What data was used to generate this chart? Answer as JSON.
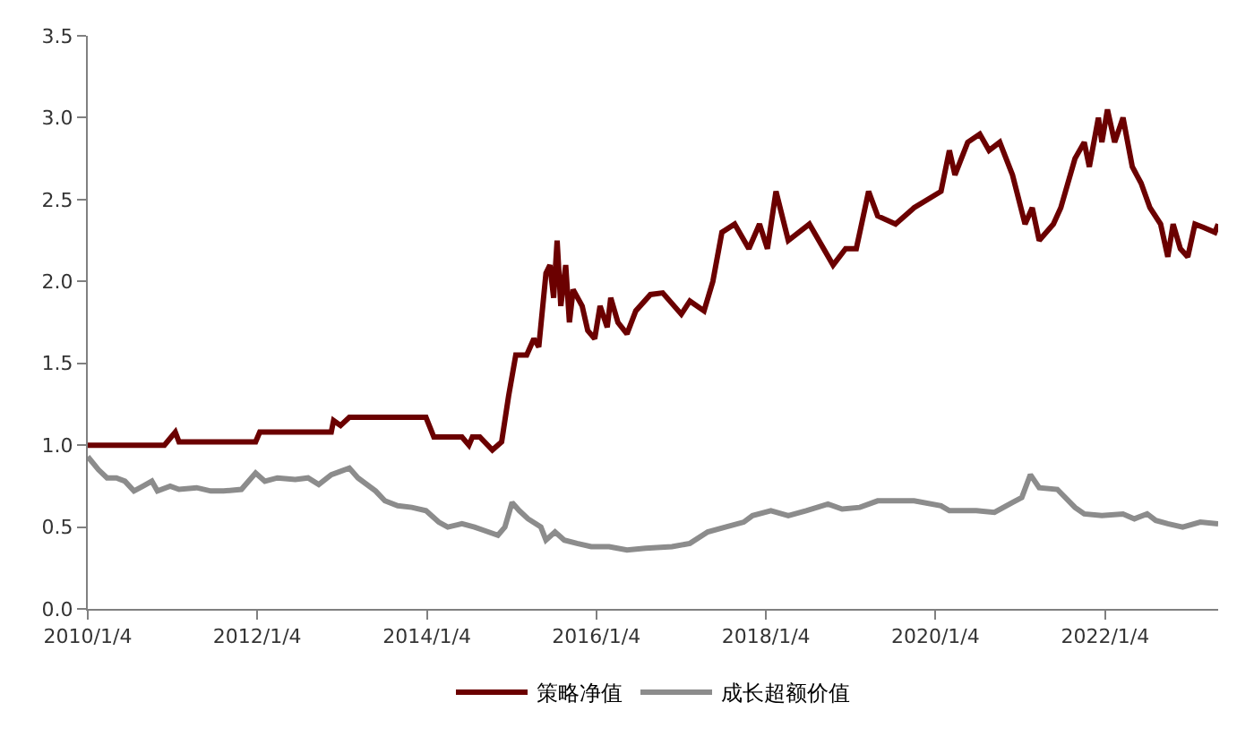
{
  "chart_data": {
    "type": "line",
    "xlim": [
      "2010-01-04",
      "2023-05-06"
    ],
    "xticks": [
      {
        "value": "2010-01-04",
        "label": "2010/1/4"
      },
      {
        "value": "2012-01-04",
        "label": "2012/1/4"
      },
      {
        "value": "2014-01-04",
        "label": "2014/1/4"
      },
      {
        "value": "2016-01-04",
        "label": "2016/1/4"
      },
      {
        "value": "2018-01-04",
        "label": "2018/1/4"
      },
      {
        "value": "2020-01-04",
        "label": "2020/1/4"
      },
      {
        "value": "2022-01-04",
        "label": "2022/1/4"
      }
    ],
    "ylim": [
      0,
      3.5
    ],
    "yticks": [
      {
        "value": 0,
        "label": "0.0"
      },
      {
        "value": 0.5,
        "label": "0.5"
      },
      {
        "value": 1,
        "label": "1.0"
      },
      {
        "value": 1.5,
        "label": "1.5"
      },
      {
        "value": 2,
        "label": "2.0"
      },
      {
        "value": 2.5,
        "label": "2.5"
      },
      {
        "value": 3,
        "label": "3.0"
      },
      {
        "value": 3.5,
        "label": "3.5"
      }
    ],
    "legend": "bottom",
    "marker": "none",
    "line_style": "solid",
    "series": [
      {
        "name": "策略净值",
        "color": "#6b0000",
        "x": [
          "2010-01-04",
          "2010-11-30",
          "2011-01-16",
          "2011-02-01",
          "2011-12-28",
          "2012-01-15",
          "2012-11-18",
          "2012-11-28",
          "2012-12-28",
          "2013-02-04",
          "2013-12-31",
          "2014-02-03",
          "2014-06-04",
          "2014-07-04",
          "2014-07-19",
          "2014-08-20",
          "2014-10-13",
          "2014-11-22",
          "2014-12-22",
          "2015-01-22",
          "2015-03-10",
          "2015-04-10",
          "2015-05-01",
          "2015-06-01",
          "2015-06-18",
          "2015-07-04",
          "2015-07-19",
          "2015-08-04",
          "2015-08-25",
          "2015-09-10",
          "2015-09-26",
          "2015-11-04",
          "2015-11-28",
          "2015-12-28",
          "2016-01-20",
          "2016-02-20",
          "2016-03-06",
          "2016-04-06",
          "2016-05-15",
          "2016-06-22",
          "2016-08-24",
          "2016-10-16",
          "2017-01-04",
          "2017-02-10",
          "2017-04-12",
          "2017-05-20",
          "2017-06-28",
          "2017-08-22",
          "2017-10-22",
          "2017-12-07",
          "2018-01-10",
          "2018-02-16",
          "2018-04-10",
          "2018-07-10",
          "2018-10-20",
          "2018-12-13",
          "2019-01-28",
          "2019-03-22",
          "2019-04-30",
          "2019-07-16",
          "2019-10-04",
          "2020-01-28",
          "2020-03-04",
          "2020-03-28",
          "2020-05-22",
          "2020-07-13",
          "2020-08-22",
          "2020-10-07",
          "2020-12-01",
          "2021-01-24",
          "2021-02-24",
          "2021-03-26",
          "2021-05-26",
          "2021-06-27",
          "2021-08-27",
          "2021-10-06",
          "2021-10-28",
          "2021-12-06",
          "2021-12-21",
          "2022-01-14",
          "2022-02-14",
          "2022-03-22",
          "2022-05-01",
          "2022-06-08",
          "2022-07-16",
          "2022-08-31",
          "2022-10-01",
          "2022-10-24",
          "2022-11-24",
          "2022-12-26",
          "2023-01-26",
          "2023-03-04",
          "2023-04-22",
          "2023-05-06"
        ],
        "values": [
          1.0,
          1.0,
          1.08,
          1.02,
          1.02,
          1.08,
          1.08,
          1.15,
          1.12,
          1.17,
          1.17,
          1.05,
          1.05,
          1.0,
          1.05,
          1.05,
          0.97,
          1.02,
          1.3,
          1.55,
          1.55,
          1.65,
          1.6,
          2.05,
          2.1,
          1.9,
          2.25,
          1.85,
          2.1,
          1.75,
          1.95,
          1.85,
          1.7,
          1.65,
          1.85,
          1.72,
          1.9,
          1.75,
          1.68,
          1.82,
          1.92,
          1.93,
          1.8,
          1.88,
          1.82,
          2.0,
          2.3,
          2.35,
          2.2,
          2.35,
          2.2,
          2.55,
          2.25,
          2.35,
          2.1,
          2.2,
          2.2,
          2.55,
          2.4,
          2.35,
          2.45,
          2.55,
          2.8,
          2.65,
          2.85,
          2.9,
          2.8,
          2.85,
          2.65,
          2.35,
          2.45,
          2.25,
          2.35,
          2.45,
          2.75,
          2.85,
          2.7,
          3.0,
          2.85,
          3.05,
          2.85,
          3.0,
          2.7,
          2.6,
          2.45,
          2.35,
          2.15,
          2.35,
          2.2,
          2.15,
          2.35,
          2.33,
          2.3,
          2.35
        ]
      },
      {
        "name": "成长超额价值",
        "color": "#8c8c8c",
        "x": [
          "2010-01-04",
          "2010-02-19",
          "2010-03-28",
          "2010-05-07",
          "2010-06-13",
          "2010-07-22",
          "2010-08-30",
          "2010-10-07",
          "2010-10-31",
          "2010-12-25",
          "2011-02-01",
          "2011-04-18",
          "2011-06-18",
          "2011-08-12",
          "2011-10-28",
          "2011-12-28",
          "2012-02-06",
          "2012-03-31",
          "2012-06-16",
          "2012-08-10",
          "2012-09-25",
          "2012-11-18",
          "2012-12-28",
          "2013-02-04",
          "2013-03-13",
          "2013-05-28",
          "2013-07-07",
          "2013-08-31",
          "2013-10-31",
          "2013-12-31",
          "2014-02-24",
          "2014-04-04",
          "2014-06-04",
          "2014-07-28",
          "2014-09-06",
          "2014-11-06",
          "2014-12-06",
          "2015-01-06",
          "2015-02-06",
          "2015-03-16",
          "2015-05-10",
          "2015-06-01",
          "2015-07-10",
          "2015-08-19",
          "2015-10-13",
          "2015-12-13",
          "2016-02-28",
          "2016-05-15",
          "2016-08-03",
          "2016-11-25",
          "2017-02-10",
          "2017-04-28",
          "2017-07-13",
          "2017-09-30",
          "2017-11-07",
          "2018-01-25",
          "2018-04-10",
          "2018-06-26",
          "2018-09-28",
          "2018-11-28",
          "2019-02-12",
          "2019-04-30",
          "2019-10-04",
          "2020-01-28",
          "2020-03-04",
          "2020-06-28",
          "2020-09-14",
          "2020-12-01",
          "2021-01-10",
          "2021-02-16",
          "2021-03-26",
          "2021-06-12",
          "2021-08-27",
          "2021-10-06",
          "2021-12-21",
          "2022-03-22",
          "2022-05-10",
          "2022-07-04",
          "2022-08-10",
          "2022-10-01",
          "2022-12-04",
          "2023-02-18",
          "2023-05-06"
        ],
        "values": [
          0.93,
          0.85,
          0.8,
          0.8,
          0.78,
          0.72,
          0.75,
          0.78,
          0.72,
          0.75,
          0.73,
          0.74,
          0.72,
          0.72,
          0.73,
          0.83,
          0.78,
          0.8,
          0.79,
          0.8,
          0.76,
          0.82,
          0.84,
          0.86,
          0.8,
          0.72,
          0.66,
          0.63,
          0.62,
          0.6,
          0.53,
          0.5,
          0.52,
          0.5,
          0.48,
          0.45,
          0.5,
          0.65,
          0.6,
          0.55,
          0.5,
          0.42,
          0.47,
          0.42,
          0.4,
          0.38,
          0.38,
          0.36,
          0.37,
          0.38,
          0.4,
          0.47,
          0.5,
          0.53,
          0.57,
          0.6,
          0.57,
          0.6,
          0.64,
          0.61,
          0.62,
          0.66,
          0.66,
          0.63,
          0.6,
          0.6,
          0.59,
          0.65,
          0.68,
          0.82,
          0.74,
          0.73,
          0.62,
          0.58,
          0.57,
          0.58,
          0.55,
          0.58,
          0.54,
          0.52,
          0.5,
          0.53,
          0.52
        ]
      }
    ]
  }
}
